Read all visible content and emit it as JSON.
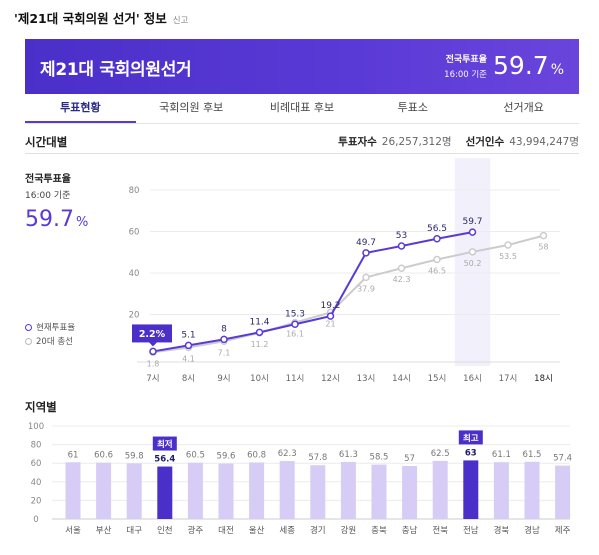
{
  "header": {
    "title": "'제21대 국회의원 선거'",
    "suffix": "정보",
    "report": "신고"
  },
  "banner": {
    "name": "제21대 국회의원선거",
    "label": "전국투표율",
    "time": "16:00 기준",
    "rate": "59.7",
    "rate_unit": "%"
  },
  "tabs": [
    {
      "label": "투표현황",
      "active": true
    },
    {
      "label": "국회의원 후보",
      "active": false
    },
    {
      "label": "비례대표 후보",
      "active": false
    },
    {
      "label": "투표소",
      "active": false
    },
    {
      "label": "선거개요",
      "active": false
    }
  ],
  "hourly": {
    "section_title": "시간대별",
    "voters_label": "투표자수",
    "voters_value": "26,257,312명",
    "electors_label": "선거인수",
    "electors_value": "43,994,247명",
    "side_label": "전국투표율",
    "side_time": "16:00 기준",
    "side_rate": "59.7",
    "side_unit": "%",
    "legend_current": "현재투표율",
    "legend_prev": "20대 총선"
  },
  "colors": {
    "accent": "#5a3ad6",
    "accent_dark": "#4b2fc9",
    "light_bar": "#d6ccf5",
    "grey_line": "#cccccc"
  },
  "chart_data": [
    {
      "type": "line",
      "x": [
        "7시",
        "8시",
        "9시",
        "10시",
        "11시",
        "12시",
        "13시",
        "14시",
        "15시",
        "16시",
        "17시",
        "18시"
      ],
      "ylim": [
        0,
        80
      ],
      "yticks": [
        20,
        40,
        60,
        80
      ],
      "highlight_category": "16시",
      "series": [
        {
          "name": "현재투표율",
          "values": [
            2.2,
            5.1,
            8,
            11.4,
            15.3,
            19.2,
            49.7,
            53,
            56.5,
            59.7,
            null,
            null
          ],
          "labels": [
            "2.2%",
            "5.1",
            "8",
            "11.4",
            "15.3",
            "19.2",
            "49.7",
            "53",
            "56.5",
            "59.7",
            "",
            ""
          ]
        },
        {
          "name": "20대 총선",
          "values": [
            1.8,
            4.1,
            7.1,
            11.2,
            16.1,
            21,
            37.9,
            42.3,
            46.5,
            50.2,
            53.5,
            58
          ],
          "labels": [
            "1.8",
            "4.1",
            "7.1",
            "11.2",
            "16.1",
            "21",
            "37.9",
            "42.3",
            "46.5",
            "50.2",
            "53.5",
            "58"
          ]
        }
      ]
    },
    {
      "type": "bar",
      "title": "지역별",
      "categories": [
        "서울",
        "부산",
        "대구",
        "인천",
        "광주",
        "대전",
        "울산",
        "세종",
        "경기",
        "강원",
        "충북",
        "충남",
        "전북",
        "전남",
        "경북",
        "경남",
        "제주"
      ],
      "values": [
        61,
        60.6,
        59.8,
        56.4,
        60.5,
        59.6,
        60.8,
        62.3,
        57.8,
        61.3,
        58.5,
        57,
        62.5,
        63,
        61.1,
        61.5,
        57.4
      ],
      "labels": [
        "61",
        "60.6",
        "59.8",
        "56.4",
        "60.5",
        "59.6",
        "60.8",
        "62.3",
        "57.8",
        "61.3",
        "58.5",
        "57",
        "62.5",
        "63",
        "61.1",
        "61.5",
        "57.4"
      ],
      "ylim": [
        0,
        100
      ],
      "yticks": [
        0,
        20,
        40,
        60,
        80,
        100
      ],
      "min_category": "인천",
      "max_category": "전남",
      "min_badge": "최저",
      "max_badge": "최고"
    }
  ]
}
